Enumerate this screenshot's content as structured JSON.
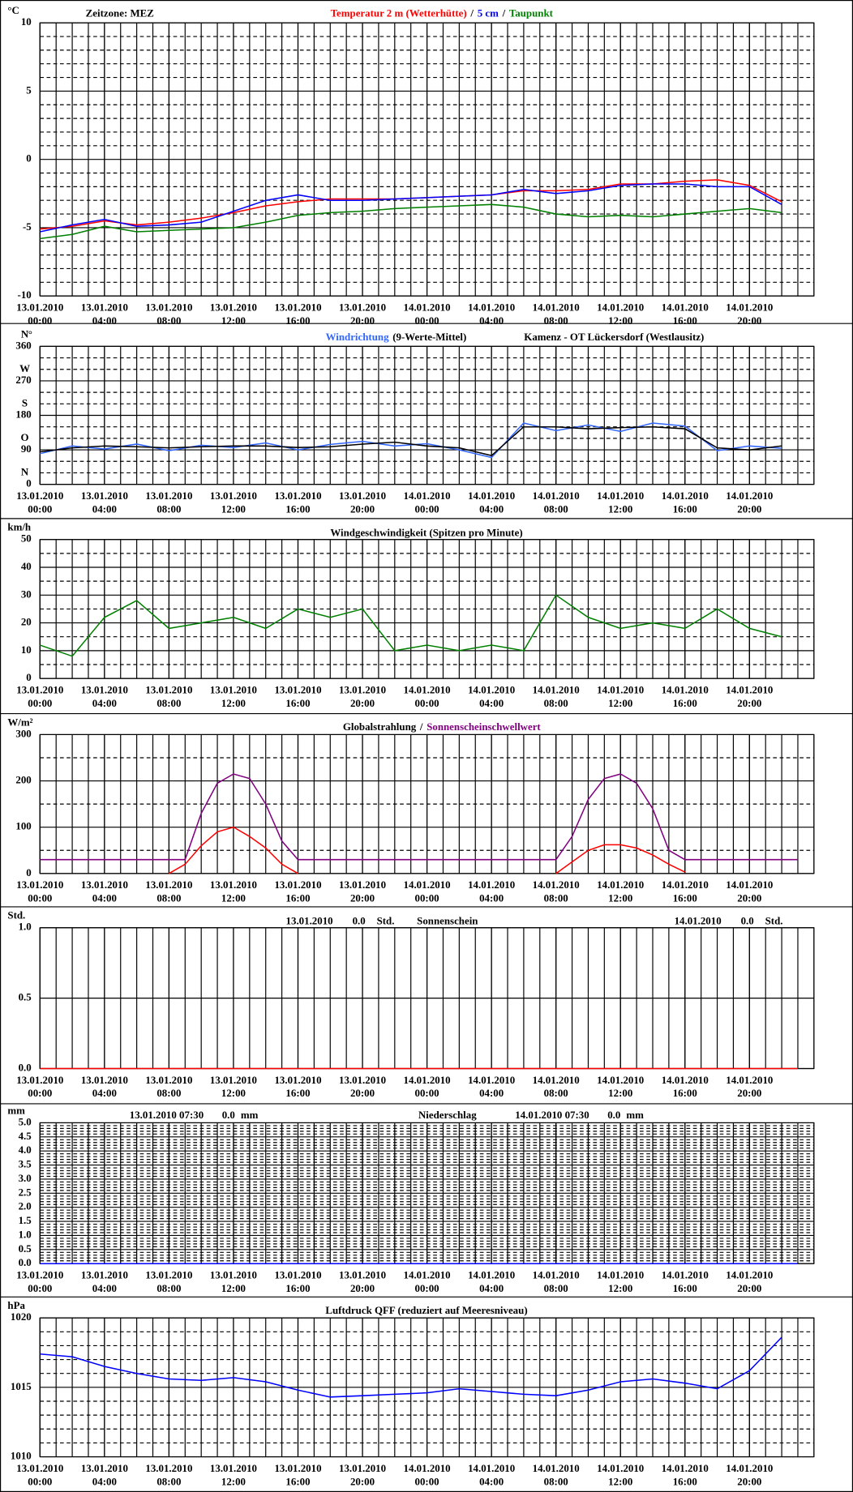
{
  "chart_data": [
    {
      "type": "line",
      "unit": "°C",
      "note": "Zeitzone: MEZ",
      "legend_separator": "/",
      "xlim": [
        "13.01.2010 00:00",
        "14.01.2010 24:00"
      ],
      "xticks": [
        "13.01.2010 00:00",
        "13.01.2010 04:00",
        "13.01.2010 08:00",
        "13.01.2010 12:00",
        "13.01.2010 16:00",
        "13.01.2010 20:00",
        "14.01.2010 00:00",
        "14.01.2010 04:00",
        "14.01.2010 08:00",
        "14.01.2010 12:00",
        "14.01.2010 16:00",
        "14.01.2010 20:00"
      ],
      "ylim": [
        -10,
        10
      ],
      "yticks": [
        -10,
        -5,
        0,
        5,
        10
      ],
      "x": [
        "13.01.2010 00:00",
        "13.01.2010 02:00",
        "13.01.2010 04:00",
        "13.01.2010 06:00",
        "13.01.2010 08:00",
        "13.01.2010 10:00",
        "13.01.2010 12:00",
        "13.01.2010 14:00",
        "13.01.2010 16:00",
        "13.01.2010 18:00",
        "13.01.2010 20:00",
        "13.01.2010 22:00",
        "14.01.2010 00:00",
        "14.01.2010 02:00",
        "14.01.2010 04:00",
        "14.01.2010 06:00",
        "14.01.2010 08:00",
        "14.01.2010 10:00",
        "14.01.2010 12:00",
        "14.01.2010 14:00",
        "14.01.2010 16:00",
        "14.01.2010 18:00",
        "14.01.2010 20:00",
        "14.01.2010 22:00"
      ],
      "series": [
        {
          "name": "Temperatur 2 m (Wetterhütte)",
          "color": "#ff0000",
          "values": [
            -5.1,
            -4.9,
            -4.5,
            -4.8,
            -4.6,
            -4.3,
            -3.9,
            -3.4,
            -3.1,
            -2.9,
            -2.9,
            -2.9,
            -2.8,
            -2.7,
            -2.6,
            -2.3,
            -2.3,
            -2.2,
            -1.8,
            -1.8,
            -1.6,
            -1.5,
            -1.9,
            -3.1
          ]
        },
        {
          "name": "5 cm",
          "color": "#0000ff",
          "values": [
            -5.3,
            -4.8,
            -4.4,
            -4.9,
            -4.8,
            -4.6,
            -3.8,
            -3.0,
            -2.6,
            -3.0,
            -3.0,
            -2.9,
            -2.8,
            -2.7,
            -2.6,
            -2.2,
            -2.5,
            -2.3,
            -1.9,
            -1.8,
            -1.8,
            -2.0,
            -2.0,
            -3.3
          ]
        },
        {
          "name": "Taupunkt",
          "color": "#008000",
          "values": [
            -5.8,
            -5.5,
            -4.9,
            -5.3,
            -5.2,
            -5.1,
            -5.0,
            -4.6,
            -4.1,
            -3.9,
            -3.8,
            -3.6,
            -3.5,
            -3.4,
            -3.3,
            -3.5,
            -4.0,
            -4.2,
            -4.1,
            -4.2,
            -4.0,
            -3.8,
            -3.6,
            -3.9
          ]
        }
      ]
    },
    {
      "type": "line",
      "unit": "°",
      "compass": [
        "N",
        "O",
        "S",
        "W",
        "N"
      ],
      "station": "Kamenz - OT Lückersdorf (Westlausitz)",
      "xlim": [
        "13.01.2010 00:00",
        "14.01.2010 24:00"
      ],
      "xticks": [
        "13.01.2010 00:00",
        "13.01.2010 04:00",
        "13.01.2010 08:00",
        "13.01.2010 12:00",
        "13.01.2010 16:00",
        "13.01.2010 20:00",
        "14.01.2010 00:00",
        "14.01.2010 04:00",
        "14.01.2010 08:00",
        "14.01.2010 12:00",
        "14.01.2010 16:00",
        "14.01.2010 20:00"
      ],
      "ylim": [
        0,
        360
      ],
      "yticks": [
        0,
        90,
        180,
        270,
        360
      ],
      "x": [
        "13.01.2010 00:00",
        "13.01.2010 02:00",
        "13.01.2010 04:00",
        "13.01.2010 06:00",
        "13.01.2010 08:00",
        "13.01.2010 10:00",
        "13.01.2010 12:00",
        "13.01.2010 14:00",
        "13.01.2010 16:00",
        "13.01.2010 18:00",
        "13.01.2010 20:00",
        "13.01.2010 22:00",
        "14.01.2010 00:00",
        "14.01.2010 02:00",
        "14.01.2010 04:00",
        "14.01.2010 06:00",
        "14.01.2010 08:00",
        "14.01.2010 10:00",
        "14.01.2010 12:00",
        "14.01.2010 14:00",
        "14.01.2010 16:00",
        "14.01.2010 18:00",
        "14.01.2010 20:00",
        "14.01.2010 22:00"
      ],
      "series": [
        {
          "name": "Windrichtung",
          "color": "#3366ff",
          "values": [
            80,
            100,
            92,
            105,
            88,
            102,
            96,
            108,
            90,
            104,
            112,
            100,
            106,
            90,
            70,
            160,
            140,
            155,
            138,
            160,
            152,
            88,
            100,
            94
          ]
        },
        {
          "name": "(9-Werte-Mittel)",
          "color": "#000000",
          "values": [
            85,
            95,
            100,
            98,
            95,
            98,
            100,
            100,
            96,
            98,
            105,
            110,
            100,
            95,
            75,
            150,
            150,
            145,
            148,
            150,
            145,
            95,
            90,
            100
          ]
        }
      ]
    },
    {
      "type": "line",
      "unit": "km/h",
      "title": "Windgeschwindigkeit (Spitzen pro Minute)",
      "color": "#008000",
      "xlim": [
        "13.01.2010 00:00",
        "14.01.2010 24:00"
      ],
      "xticks": [
        "13.01.2010 00:00",
        "13.01.2010 04:00",
        "13.01.2010 08:00",
        "13.01.2010 12:00",
        "13.01.2010 16:00",
        "13.01.2010 20:00",
        "14.01.2010 00:00",
        "14.01.2010 04:00",
        "14.01.2010 08:00",
        "14.01.2010 12:00",
        "14.01.2010 16:00",
        "14.01.2010 20:00"
      ],
      "ylim": [
        0,
        50
      ],
      "yticks": [
        0,
        10,
        20,
        30,
        40,
        50
      ],
      "x": [
        "13.01.2010 00:00",
        "13.01.2010 02:00",
        "13.01.2010 04:00",
        "13.01.2010 06:00",
        "13.01.2010 08:00",
        "13.01.2010 10:00",
        "13.01.2010 12:00",
        "13.01.2010 14:00",
        "13.01.2010 16:00",
        "13.01.2010 18:00",
        "13.01.2010 20:00",
        "13.01.2010 22:00",
        "14.01.2010 00:00",
        "14.01.2010 02:00",
        "14.01.2010 04:00",
        "14.01.2010 06:00",
        "14.01.2010 08:00",
        "14.01.2010 10:00",
        "14.01.2010 12:00",
        "14.01.2010 14:00",
        "14.01.2010 16:00",
        "14.01.2010 18:00",
        "14.01.2010 20:00",
        "14.01.2010 22:00"
      ],
      "values": [
        12,
        8,
        22,
        28,
        18,
        20,
        22,
        18,
        25,
        22,
        25,
        10,
        12,
        10,
        12,
        10,
        30,
        22,
        18,
        20,
        18,
        25,
        18,
        15
      ]
    },
    {
      "type": "line",
      "unit": "W/m²",
      "legend_separator": "/",
      "xlim": [
        "13.01.2010 00:00",
        "14.01.2010 24:00"
      ],
      "xticks": [
        "13.01.2010 00:00",
        "13.01.2010 04:00",
        "13.01.2010 08:00",
        "13.01.2010 12:00",
        "13.01.2010 16:00",
        "13.01.2010 20:00",
        "14.01.2010 00:00",
        "14.01.2010 04:00",
        "14.01.2010 08:00",
        "14.01.2010 12:00",
        "14.01.2010 16:00",
        "14.01.2010 20:00"
      ],
      "ylim": [
        0,
        300
      ],
      "yticks": [
        0,
        100,
        200,
        300
      ],
      "x": [
        "13.01.2010 00:00",
        "13.01.2010 01:00",
        "13.01.2010 02:00",
        "13.01.2010 03:00",
        "13.01.2010 04:00",
        "13.01.2010 05:00",
        "13.01.2010 06:00",
        "13.01.2010 07:00",
        "13.01.2010 08:00",
        "13.01.2010 09:00",
        "13.01.2010 10:00",
        "13.01.2010 11:00",
        "13.01.2010 12:00",
        "13.01.2010 13:00",
        "13.01.2010 14:00",
        "13.01.2010 15:00",
        "13.01.2010 16:00",
        "13.01.2010 17:00",
        "13.01.2010 18:00",
        "13.01.2010 19:00",
        "13.01.2010 20:00",
        "13.01.2010 21:00",
        "13.01.2010 22:00",
        "13.01.2010 23:00",
        "14.01.2010 00:00",
        "14.01.2010 01:00",
        "14.01.2010 02:00",
        "14.01.2010 03:00",
        "14.01.2010 04:00",
        "14.01.2010 05:00",
        "14.01.2010 06:00",
        "14.01.2010 07:00",
        "14.01.2010 08:00",
        "14.01.2010 09:00",
        "14.01.2010 10:00",
        "14.01.2010 11:00",
        "14.01.2010 12:00",
        "14.01.2010 13:00",
        "14.01.2010 14:00",
        "14.01.2010 15:00",
        "14.01.2010 16:00",
        "14.01.2010 17:00",
        "14.01.2010 18:00",
        "14.01.2010 19:00",
        "14.01.2010 20:00",
        "14.01.2010 21:00",
        "14.01.2010 22:00",
        "14.01.2010 23:00"
      ],
      "series": [
        {
          "name": "Globalstrahlung",
          "color": "#ff0000",
          "label_color": "#000000",
          "values": [
            null,
            null,
            null,
            null,
            null,
            null,
            null,
            null,
            0,
            20,
            60,
            90,
            100,
            80,
            55,
            20,
            0,
            null,
            null,
            null,
            null,
            null,
            null,
            null,
            null,
            null,
            null,
            null,
            null,
            null,
            null,
            null,
            0,
            25,
            50,
            62,
            62,
            55,
            40,
            20,
            3,
            null,
            null,
            null,
            null,
            null,
            null,
            null
          ]
        },
        {
          "name": "Sonnenscheinschwellwert",
          "color": "#800080",
          "values": [
            30,
            30,
            30,
            30,
            30,
            30,
            30,
            30,
            30,
            30,
            130,
            195,
            215,
            205,
            150,
            70,
            30,
            30,
            30,
            30,
            30,
            30,
            30,
            30,
            30,
            30,
            30,
            30,
            30,
            30,
            30,
            30,
            30,
            80,
            160,
            205,
            215,
            195,
            140,
            50,
            30,
            30,
            30,
            30,
            30,
            30,
            30,
            30
          ]
        }
      ]
    },
    {
      "type": "line",
      "unit": "Std.",
      "title": "Sonnenschein",
      "color": "#ff0000",
      "daily_totals": [
        {
          "date": "13.01.2010",
          "total": "0.0",
          "unit": "Std."
        },
        {
          "date": "14.01.2010",
          "total": "0.0",
          "unit": "Std."
        }
      ],
      "xlim": [
        "13.01.2010 00:00",
        "14.01.2010 24:00"
      ],
      "xticks": [
        "13.01.2010 00:00",
        "13.01.2010 04:00",
        "13.01.2010 08:00",
        "13.01.2010 12:00",
        "13.01.2010 16:00",
        "13.01.2010 20:00",
        "14.01.2010 00:00",
        "14.01.2010 04:00",
        "14.01.2010 08:00",
        "14.01.2010 12:00",
        "14.01.2010 16:00",
        "14.01.2010 20:00"
      ],
      "ylim": [
        0,
        1
      ],
      "yticks": [
        {
          "value": 0,
          "label": "0.0"
        },
        0.5,
        {
          "value": 1,
          "label": "1.0"
        }
      ],
      "x": [
        "13.01.2010 00:00",
        "14.01.2010 23:00"
      ],
      "values": [
        0,
        0
      ]
    },
    {
      "type": "line",
      "unit": "mm",
      "title": "Niederschlag",
      "color": "#0000ff",
      "daily_totals": [
        {
          "date": "13.01.2010 07:30",
          "total": "0.0",
          "unit": "mm"
        },
        {
          "date": "14.01.2010 07:30",
          "total": "0.0",
          "unit": "mm"
        }
      ],
      "xlim": [
        "13.01.2010 00:00",
        "14.01.2010 24:00"
      ],
      "xticks": [
        "13.01.2010 00:00",
        "13.01.2010 04:00",
        "13.01.2010 08:00",
        "13.01.2010 12:00",
        "13.01.2010 16:00",
        "13.01.2010 20:00",
        "14.01.2010 00:00",
        "14.01.2010 04:00",
        "14.01.2010 08:00",
        "14.01.2010 12:00",
        "14.01.2010 16:00",
        "14.01.2010 20:00"
      ],
      "ylim": [
        0,
        5
      ],
      "yticks": [
        {
          "value": 0,
          "label": "0.0"
        },
        0.5,
        {
          "value": 1,
          "label": "1.0"
        },
        1.5,
        {
          "value": 2,
          "label": "2.0"
        },
        2.5,
        {
          "value": 3,
          "label": "3.0"
        },
        3.5,
        {
          "value": 4,
          "label": "4.0"
        },
        4.5,
        {
          "value": 5,
          "label": "5.0"
        }
      ],
      "x": [
        "13.01.2010 00:00",
        "14.01.2010 23:00"
      ],
      "values": [
        0,
        0
      ]
    },
    {
      "type": "line",
      "unit": "hPa",
      "title": "Luftdruck QFF (reduziert auf Meeresniveau)",
      "color": "#0000ff",
      "xlim": [
        "13.01.2010 00:00",
        "14.01.2010 24:00"
      ],
      "xticks": [
        "13.01.2010 00:00",
        "13.01.2010 04:00",
        "13.01.2010 08:00",
        "13.01.2010 12:00",
        "13.01.2010 16:00",
        "13.01.2010 20:00",
        "14.01.2010 00:00",
        "14.01.2010 04:00",
        "14.01.2010 08:00",
        "14.01.2010 12:00",
        "14.01.2010 16:00",
        "14.01.2010 20:00"
      ],
      "ylim": [
        1010,
        1020
      ],
      "yticks": [
        1010,
        1015,
        1020
      ],
      "x": [
        "13.01.2010 00:00",
        "13.01.2010 02:00",
        "13.01.2010 04:00",
        "13.01.2010 06:00",
        "13.01.2010 08:00",
        "13.01.2010 10:00",
        "13.01.2010 12:00",
        "13.01.2010 14:00",
        "13.01.2010 16:00",
        "13.01.2010 18:00",
        "13.01.2010 20:00",
        "13.01.2010 22:00",
        "14.01.2010 00:00",
        "14.01.2010 02:00",
        "14.01.2010 04:00",
        "14.01.2010 06:00",
        "14.01.2010 08:00",
        "14.01.2010 10:00",
        "14.01.2010 12:00",
        "14.01.2010 14:00",
        "14.01.2010 16:00",
        "14.01.2010 18:00",
        "14.01.2010 20:00",
        "14.01.2010 22:00"
      ],
      "values": [
        1017.4,
        1017.2,
        1016.5,
        1016.0,
        1015.6,
        1015.5,
        1015.7,
        1015.4,
        1014.8,
        1014.3,
        1014.4,
        1014.5,
        1014.6,
        1014.9,
        1014.7,
        1014.5,
        1014.4,
        1014.8,
        1015.4,
        1015.6,
        1015.3,
        1014.9,
        1016.2,
        1018.6
      ]
    }
  ]
}
